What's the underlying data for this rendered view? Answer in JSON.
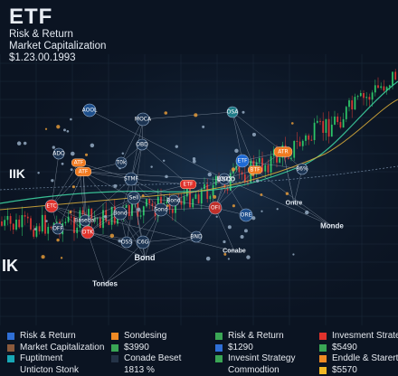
{
  "header": {
    "title": "ETF",
    "lines": [
      "Risk & Return",
      "Market Capitalization",
      "$1.23.00.1993"
    ]
  },
  "side_labels": {
    "left_top": "IIK",
    "left_bottom": "IK"
  },
  "nodes": [
    {
      "label": "AOOL"
    },
    {
      "label": "MOCA"
    },
    {
      "label": "OBD"
    },
    {
      "label": "ADO"
    },
    {
      "label": "OSA"
    },
    {
      "label": "ATF"
    },
    {
      "label": "T0k"
    },
    {
      "label": "STMF"
    },
    {
      "label": "Sell"
    },
    {
      "label": "ETF"
    },
    {
      "label": "LOOS"
    },
    {
      "label": "OFI"
    },
    {
      "label": "Bond"
    },
    {
      "label": "Sond"
    },
    {
      "label": "ATR"
    },
    {
      "label": "ORE"
    },
    {
      "label": "ETF"
    },
    {
      "label": "ATF"
    },
    {
      "label": "BTF"
    },
    {
      "label": "ETC"
    },
    {
      "label": "Bond"
    },
    {
      "label": "Basebal"
    },
    {
      "label": "OFF"
    },
    {
      "label": "DTK"
    },
    {
      "label": "OSS"
    },
    {
      "label": "C6G"
    },
    {
      "label": "Bond"
    },
    {
      "label": "Conabe"
    },
    {
      "label": "Tondes"
    },
    {
      "label": "Ontre"
    },
    {
      "label": "Monde"
    },
    {
      "label": "BSCO"
    },
    {
      "label": "86%"
    },
    {
      "label": "BND"
    }
  ],
  "legend": {
    "colors": {
      "blue": "#2f6fd6",
      "brown": "#8b5a3c",
      "teal": "#18a7b5",
      "orange": "#f08a24",
      "green": "#3aa655",
      "dark": "#243347",
      "red": "#e0322c",
      "yellow": "#f2b824"
    },
    "items": [
      {
        "text": "Risk & Return",
        "color": "blue"
      },
      {
        "text": "Sondesing",
        "color": "orange"
      },
      {
        "text": "Risk & Return",
        "color": "green"
      },
      {
        "text": "Invesment Strategy",
        "color": "red"
      },
      {
        "text": "Market Capitalization",
        "color": "brown"
      },
      {
        "text": "$3990",
        "color": "green"
      },
      {
        "text": "$1290",
        "color": "blue"
      },
      {
        "text": "$5490",
        "color": "green"
      },
      {
        "text": "Fuptitment",
        "color": "teal"
      },
      {
        "text": "Conade Beset",
        "color": "dark"
      },
      {
        "text": "Invesint Strategy",
        "color": "green"
      },
      {
        "text": "Enddle & Starert",
        "color": "orange"
      },
      {
        "text": "Unticton Stonk",
        "color": ""
      },
      {
        "text": "1813 %",
        "color": ""
      },
      {
        "text": "Commodtion",
        "color": ""
      },
      {
        "text": "$5570",
        "color": "yellow"
      }
    ]
  }
}
